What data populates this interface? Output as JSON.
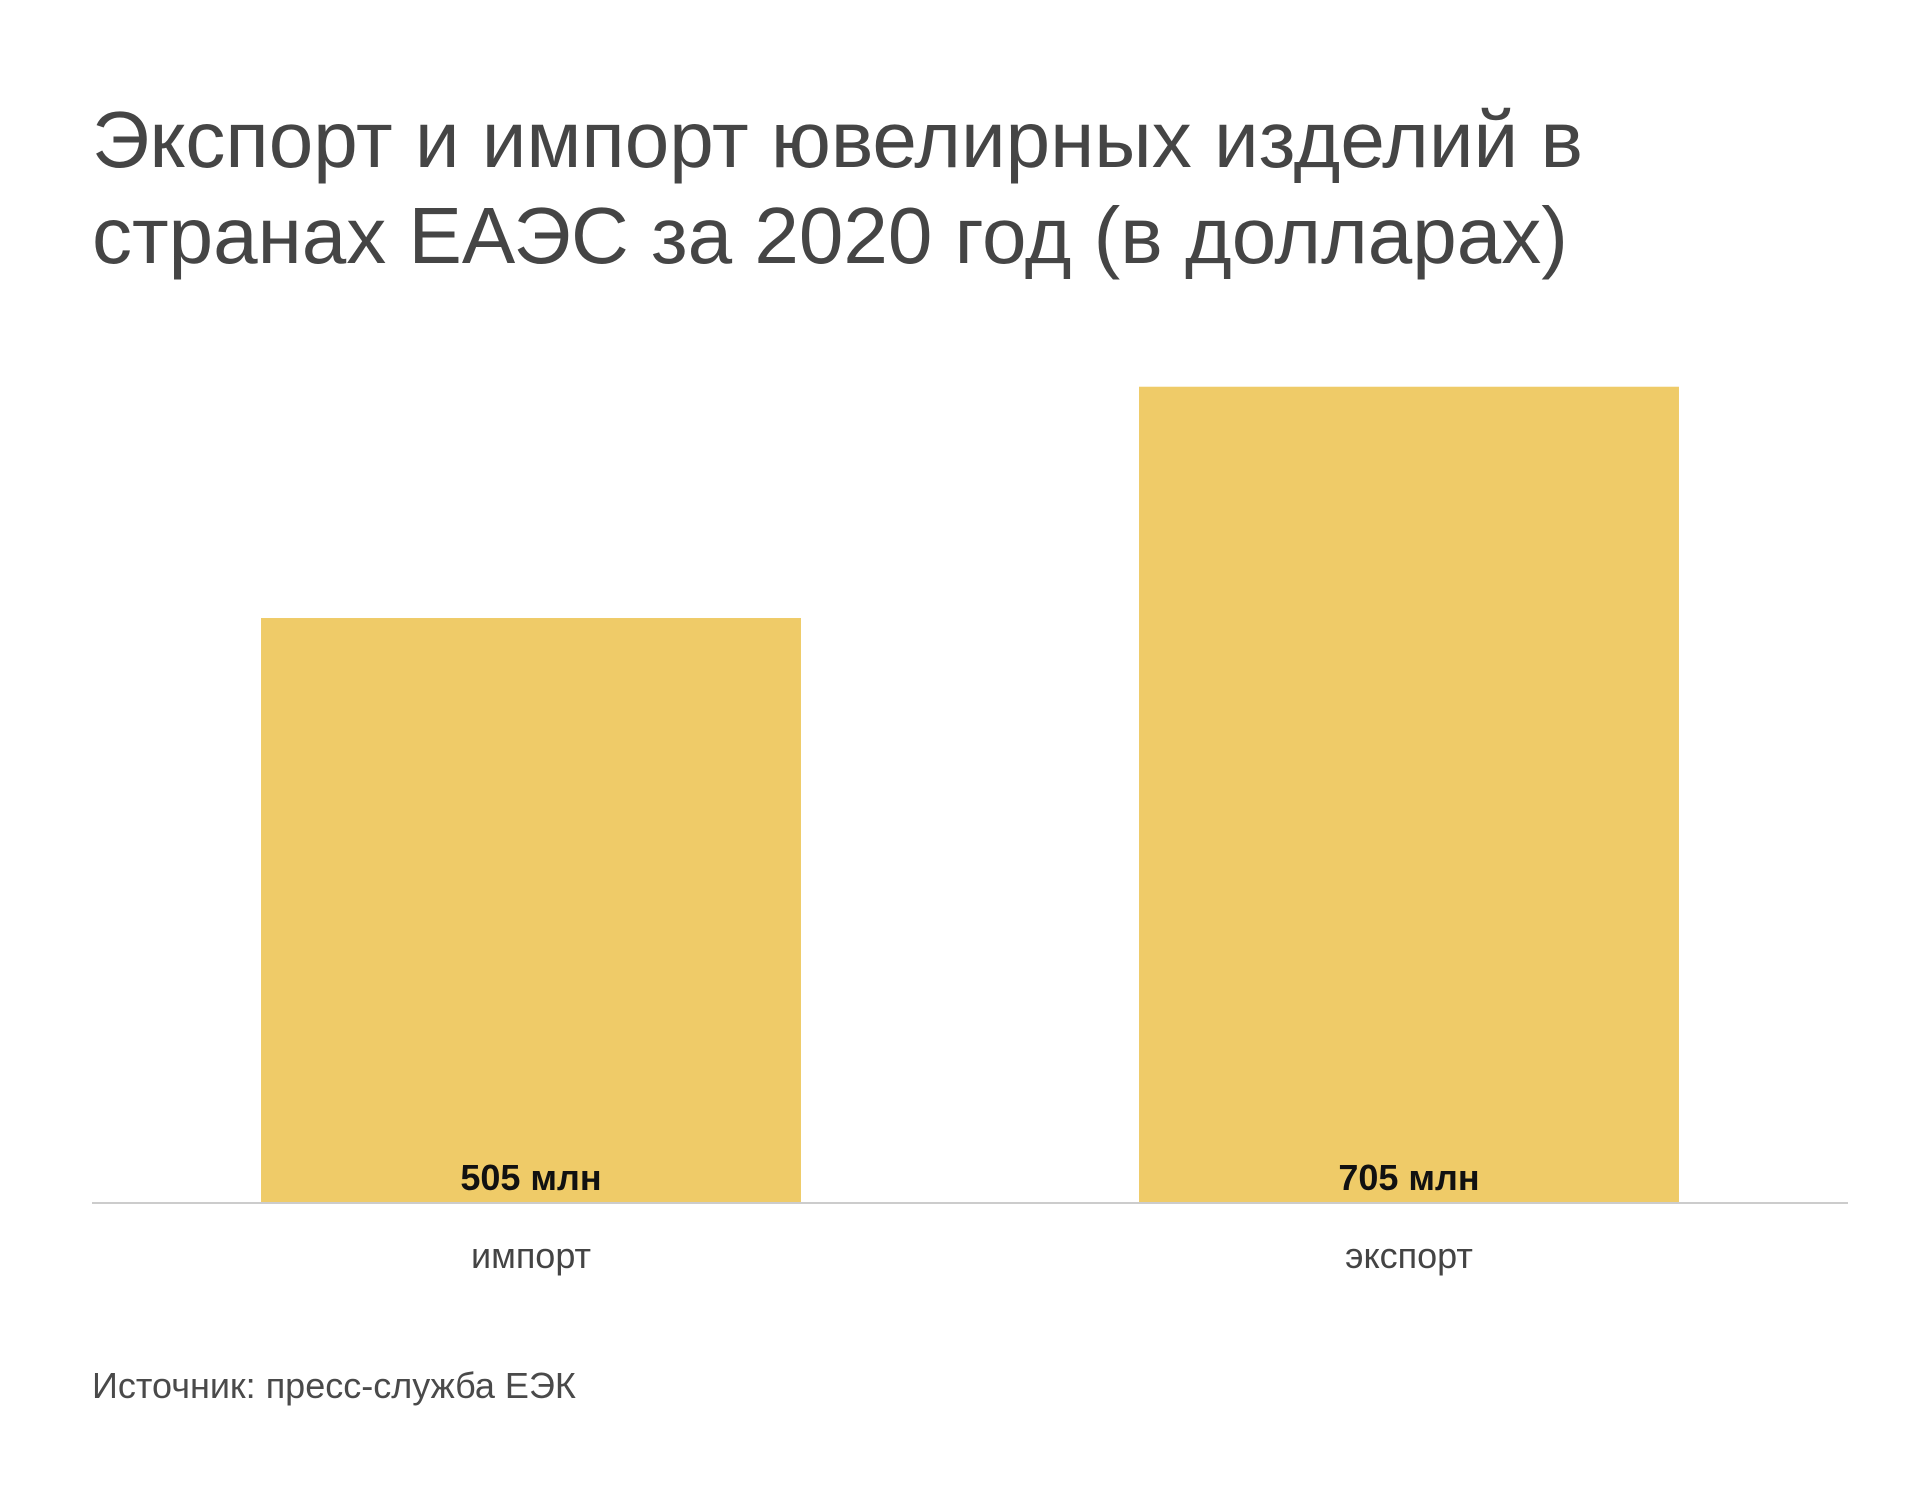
{
  "title": "Экспорт и импорт ювелирных изделий в странах ЕАЭС за 2020 год (в долларах)",
  "source": "Источник: пресс-служба ЕЭК",
  "colors": {
    "bar": "#EFCB68",
    "axis": "#CCCCCC"
  },
  "chart_data": {
    "type": "bar",
    "title": "Экспорт и импорт ювелирных изделий в странах ЕАЭС за 2020 год (в долларах)",
    "categories": [
      "импорт",
      "экспорт"
    ],
    "values": [
      505,
      705
    ],
    "data_labels": [
      "505 млн",
      "705 млн"
    ],
    "unit": "млн",
    "ylim": [
      0,
      780
    ],
    "grid": false,
    "legend": "none"
  }
}
